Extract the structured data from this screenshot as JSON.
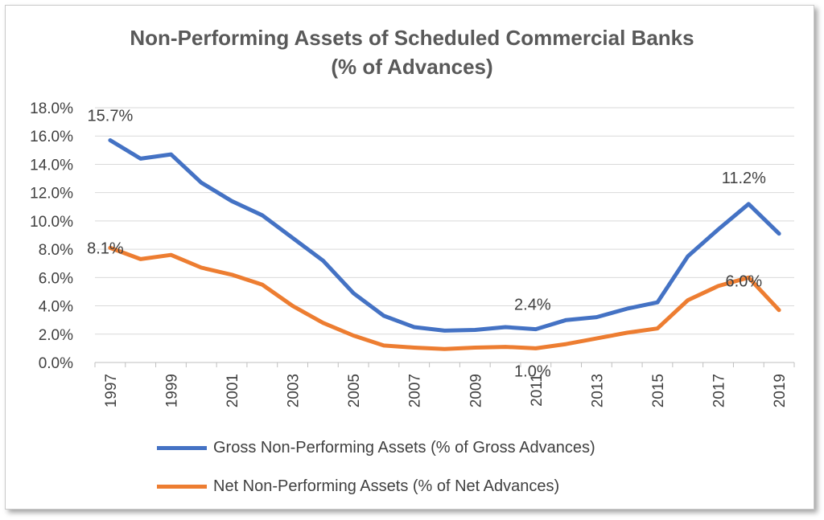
{
  "chart_data": {
    "type": "line",
    "title": "Non-Performing Assets of Scheduled Commercial Banks",
    "subtitle": "(% of Advances)",
    "x": [
      1997,
      1998,
      1999,
      2000,
      2001,
      2002,
      2003,
      2004,
      2005,
      2006,
      2007,
      2008,
      2009,
      2010,
      2011,
      2012,
      2013,
      2014,
      2015,
      2016,
      2017,
      2018,
      2019
    ],
    "x_tick_labels": [
      "1997",
      "1999",
      "2001",
      "2003",
      "2005",
      "2007",
      "2009",
      "2011",
      "2013",
      "2015",
      "2017",
      "2019"
    ],
    "y_tick_labels": [
      "18.0%",
      "16.0%",
      "14.0%",
      "12.0%",
      "10.0%",
      "8.0%",
      "6.0%",
      "4.0%",
      "2.0%",
      "0.0%"
    ],
    "ylim": [
      0,
      18
    ],
    "grid": true,
    "legend_position": "bottom",
    "series": [
      {
        "name": "Gross Non-Performing Assets (% of Gross Advances)",
        "color": "#4472c4",
        "values": [
          15.7,
          14.4,
          14.7,
          12.7,
          11.4,
          10.4,
          8.8,
          7.2,
          4.9,
          3.3,
          2.5,
          2.25,
          2.3,
          2.5,
          2.35,
          3.0,
          3.2,
          3.8,
          4.25,
          7.5,
          9.4,
          11.2,
          9.1
        ]
      },
      {
        "name": "Net Non-Performing Assets (% of Net Advances)",
        "color": "#ed7d31",
        "values": [
          8.1,
          7.3,
          7.6,
          6.7,
          6.2,
          5.5,
          4.0,
          2.8,
          1.9,
          1.2,
          1.05,
          0.95,
          1.05,
          1.1,
          1.0,
          1.3,
          1.7,
          2.1,
          2.4,
          4.4,
          5.4,
          6.0,
          3.7
        ]
      }
    ],
    "annotations": [
      {
        "text": "15.7%",
        "series": 0,
        "x": 1997
      },
      {
        "text": "11.2%",
        "series": 0,
        "x": 2018
      },
      {
        "text": "2.4%",
        "series": 0,
        "x": 2011
      },
      {
        "text": "8.1%",
        "series": 1,
        "x": 1997
      },
      {
        "text": "6.0%",
        "series": 1,
        "x": 2018
      },
      {
        "text": "1.0%",
        "series": 1,
        "x": 2011
      }
    ]
  }
}
